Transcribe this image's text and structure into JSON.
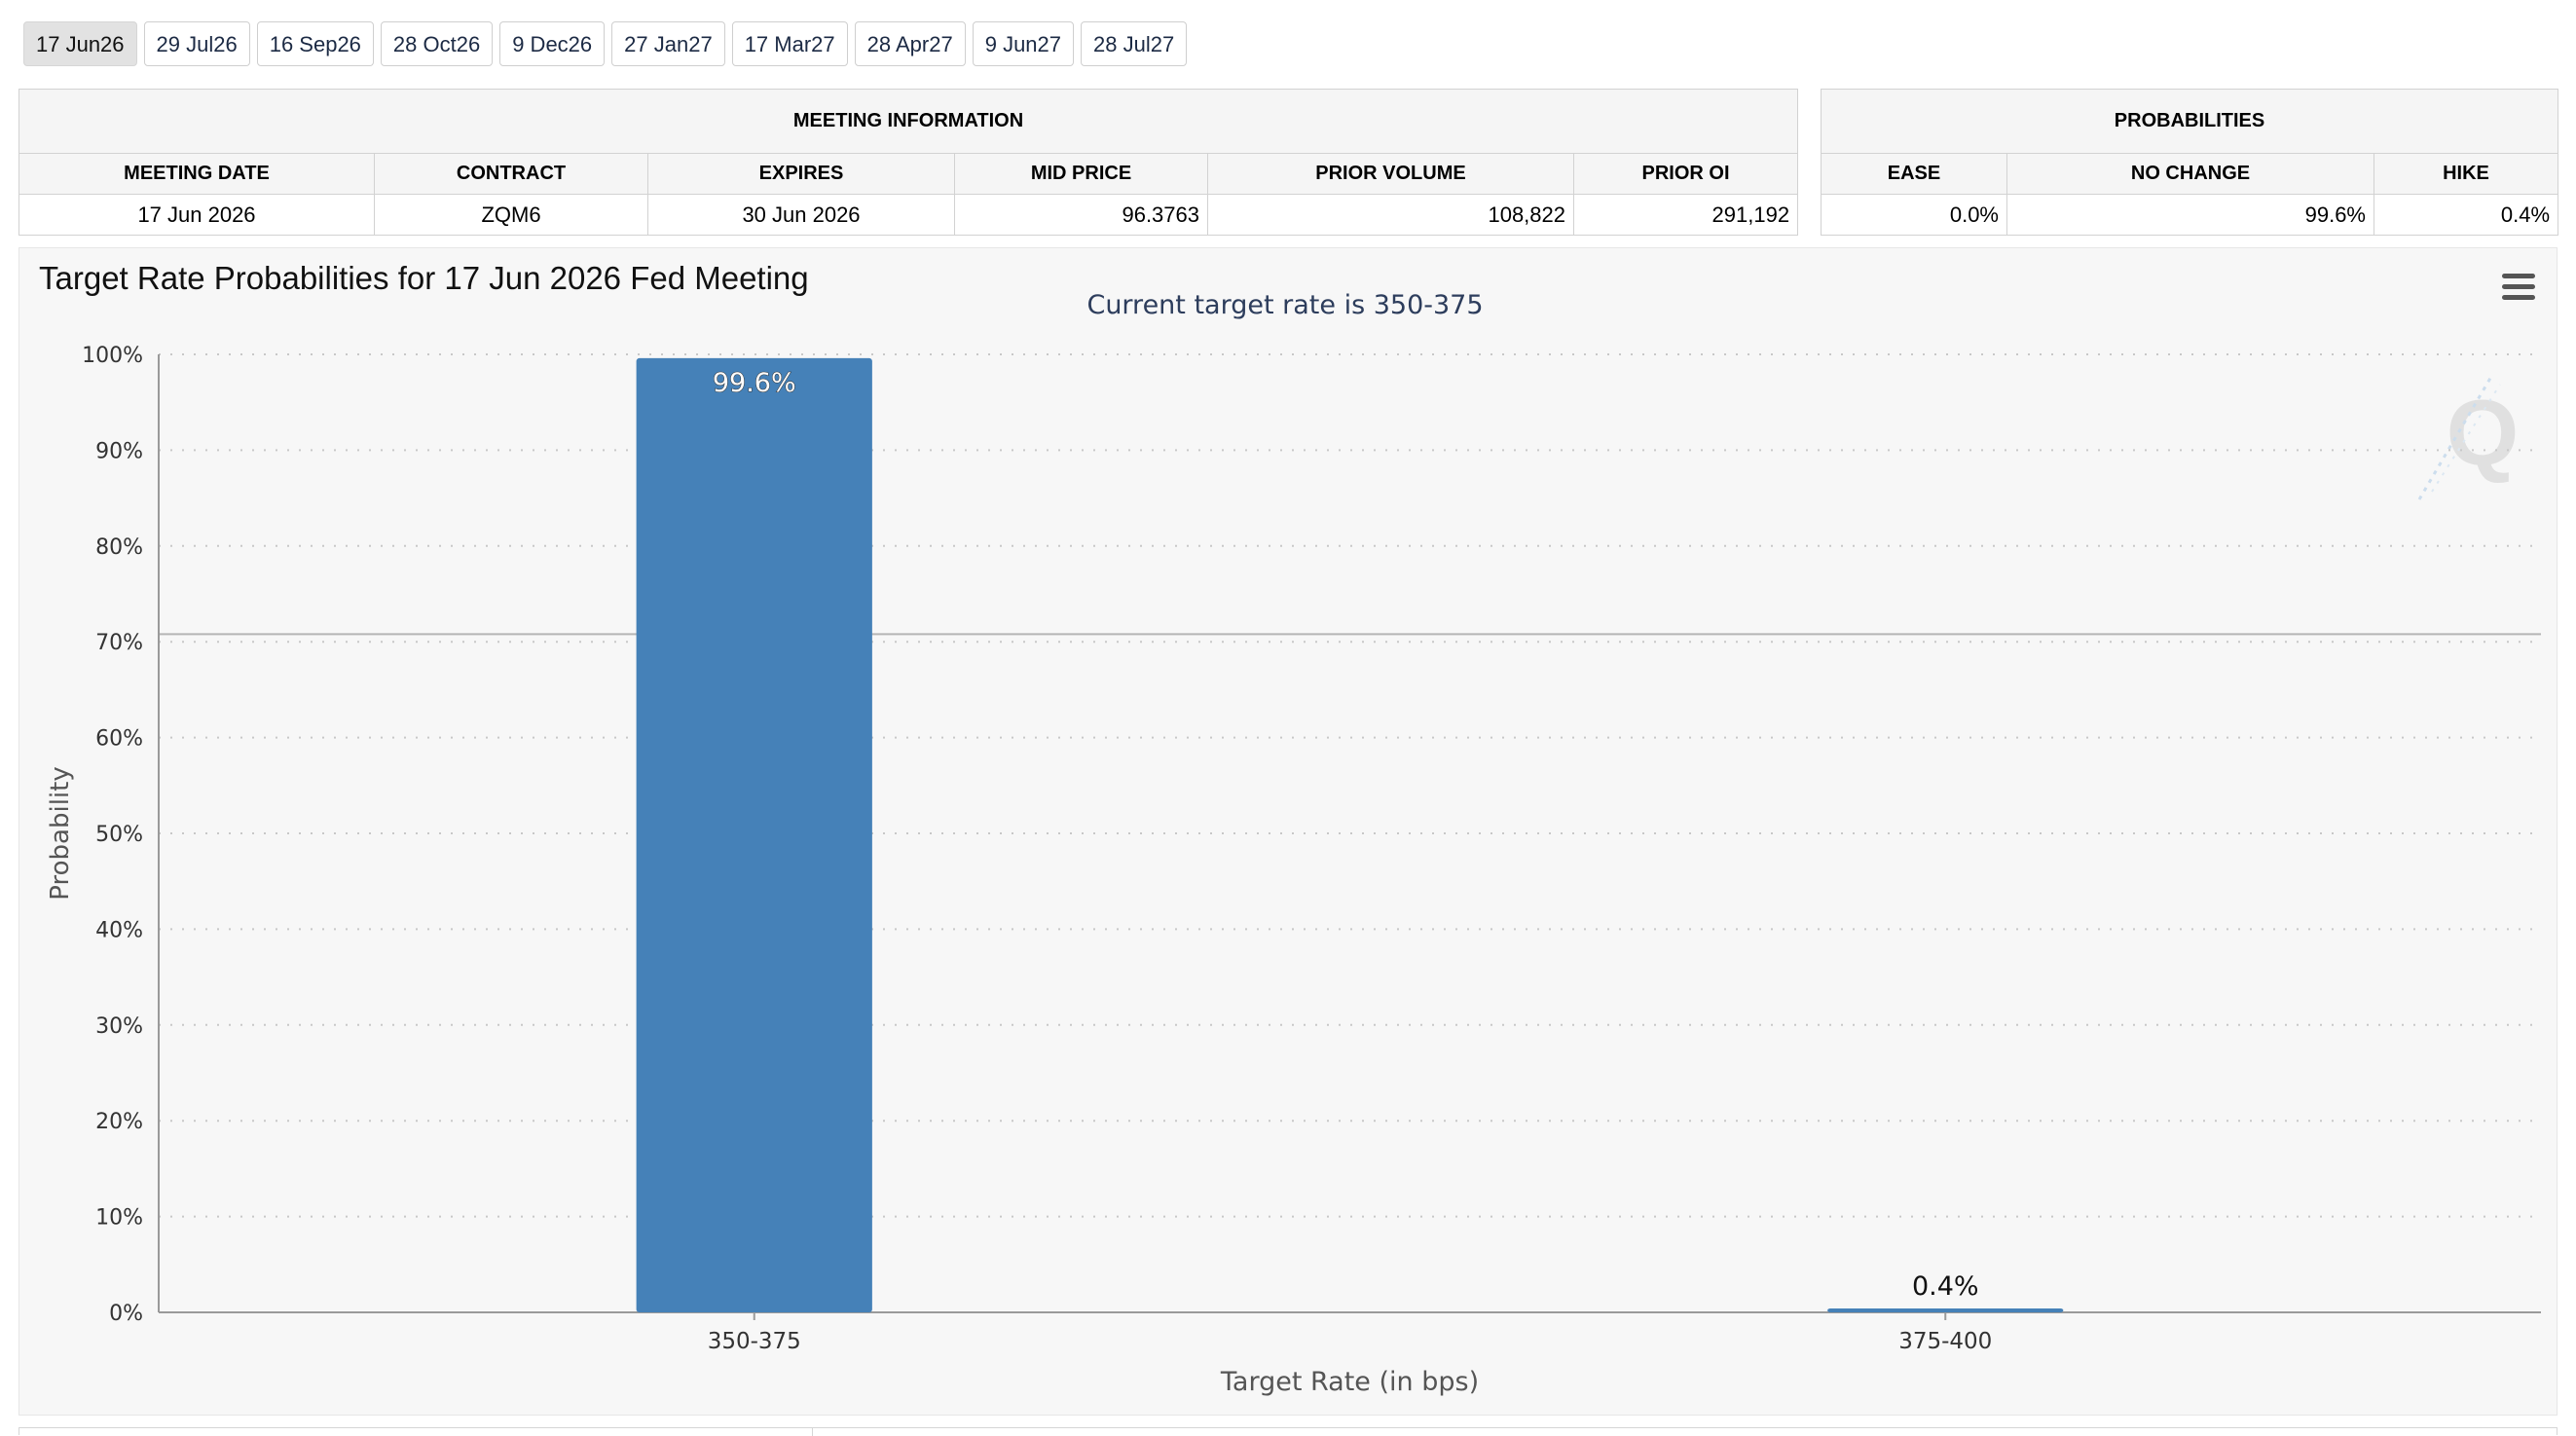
{
  "tabs": [
    {
      "label": "17 Jun26",
      "active": true
    },
    {
      "label": "29 Jul26",
      "active": false
    },
    {
      "label": "16 Sep26",
      "active": false
    },
    {
      "label": "28 Oct26",
      "active": false
    },
    {
      "label": "9 Dec26",
      "active": false
    },
    {
      "label": "27 Jan27",
      "active": false
    },
    {
      "label": "17 Mar27",
      "active": false
    },
    {
      "label": "28 Apr27",
      "active": false
    },
    {
      "label": "9 Jun27",
      "active": false
    },
    {
      "label": "28 Jul27",
      "active": false
    }
  ],
  "meeting_info": {
    "heading": "MEETING INFORMATION",
    "columns": [
      "MEETING DATE",
      "CONTRACT",
      "EXPIRES",
      "MID PRICE",
      "PRIOR VOLUME",
      "PRIOR OI"
    ],
    "row": [
      "17 Jun 2026",
      "ZQM6",
      "30 Jun 2026",
      "96.3763",
      "108,822",
      "291,192"
    ]
  },
  "probabilities": {
    "heading": "PROBABILITIES",
    "columns": [
      "EASE",
      "NO CHANGE",
      "HIKE"
    ],
    "row": [
      "0.0%",
      "99.6%",
      "0.4%"
    ]
  },
  "chart_data": {
    "type": "bar",
    "title": "Target Rate Probabilities for 17 Jun 2026 Fed Meeting",
    "subtitle": "Current target rate is 350-375",
    "xlabel": "Target Rate (in bps)",
    "ylabel": "Probability",
    "categories": [
      "350-375",
      "375-400"
    ],
    "values": [
      99.6,
      0.4
    ],
    "data_labels": [
      "99.6%",
      "0.4%"
    ],
    "ylim": [
      0,
      100
    ],
    "yticks": [
      "0%",
      "10%",
      "20%",
      "30%",
      "40%",
      "50%",
      "60%",
      "70%",
      "80%",
      "90%",
      "100%"
    ],
    "reference_line_y": 70.8,
    "grid": true,
    "bar_color": "#4581b8"
  }
}
